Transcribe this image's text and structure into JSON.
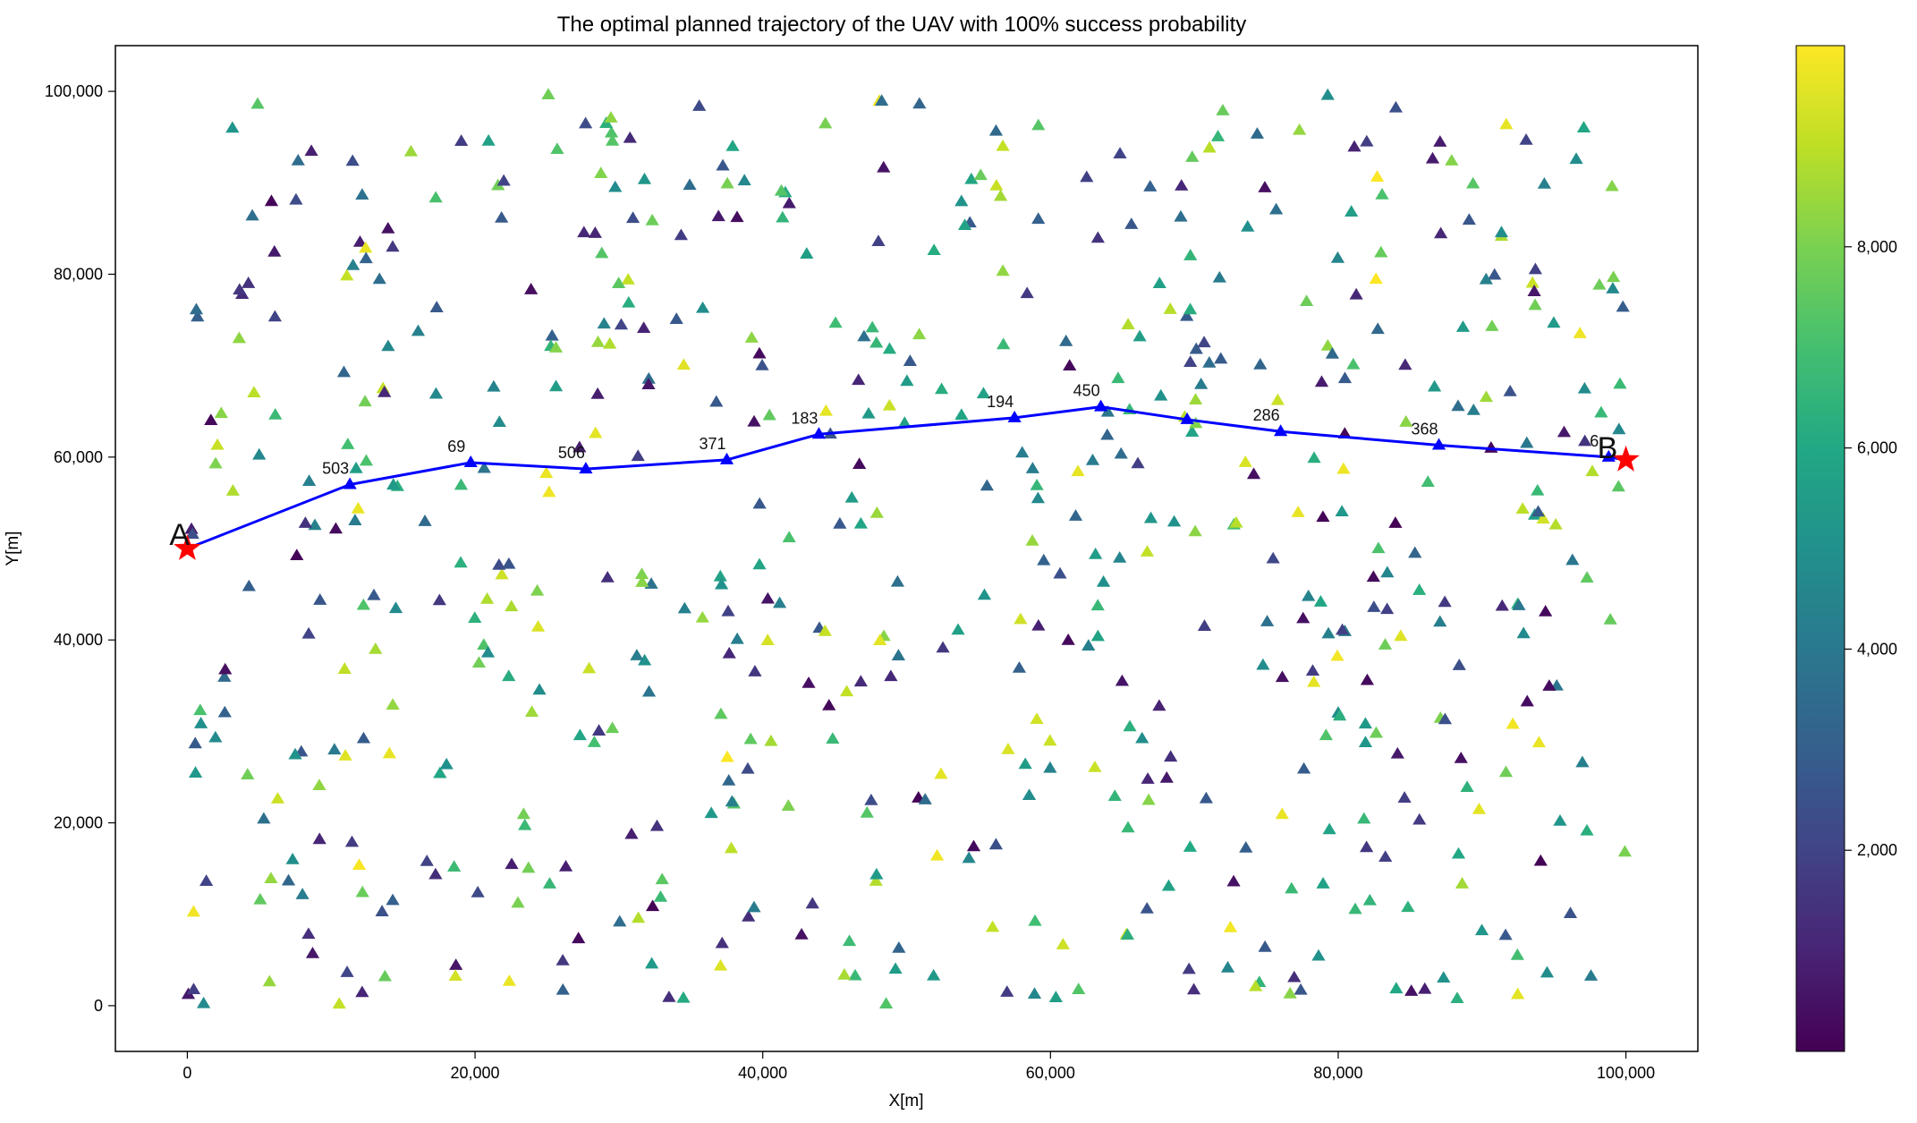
{
  "chart_data": {
    "type": "scatter",
    "title": "The optimal planned trajectory of the UAV with 100% success probability",
    "xlabel": "X[m]",
    "ylabel": "Y[m]",
    "xlim": [
      -5000,
      105000
    ],
    "ylim": [
      -5000,
      105000
    ],
    "x_ticks": [
      "0",
      "20,000",
      "40,000",
      "60,000",
      "80,000",
      "100,000"
    ],
    "y_ticks": [
      "0",
      "20,000",
      "40,000",
      "60,000",
      "80,000",
      "100,000"
    ],
    "grid": false,
    "colorbar": {
      "range": [
        0,
        10000
      ],
      "ticks": [
        "2,000",
        "4,000",
        "6,000",
        "8,000"
      ],
      "colormap": "viridis"
    },
    "start_label": "A",
    "end_label": "B",
    "trajectory_color": "#0000ff",
    "endpoint_color": "#ff0000",
    "trajectory": [
      {
        "x": 0,
        "y": 50000,
        "label": ""
      },
      {
        "x": 11300,
        "y": 57000,
        "label": "503"
      },
      {
        "x": 19700,
        "y": 59400,
        "label": "69"
      },
      {
        "x": 27700,
        "y": 58700,
        "label": "506"
      },
      {
        "x": 37500,
        "y": 59700,
        "label": "371"
      },
      {
        "x": 43900,
        "y": 62500,
        "label": "183"
      },
      {
        "x": 57500,
        "y": 64300,
        "label": "194"
      },
      {
        "x": 63500,
        "y": 65500,
        "label": "450"
      },
      {
        "x": 69500,
        "y": 64100,
        "label": ""
      },
      {
        "x": 76000,
        "y": 62800,
        "label": "286"
      },
      {
        "x": 87000,
        "y": 61300,
        "label": "368"
      },
      {
        "x": 98800,
        "y": 60000,
        "label": "6"
      },
      {
        "x": 100000,
        "y": 59700,
        "label": ""
      }
    ]
  }
}
